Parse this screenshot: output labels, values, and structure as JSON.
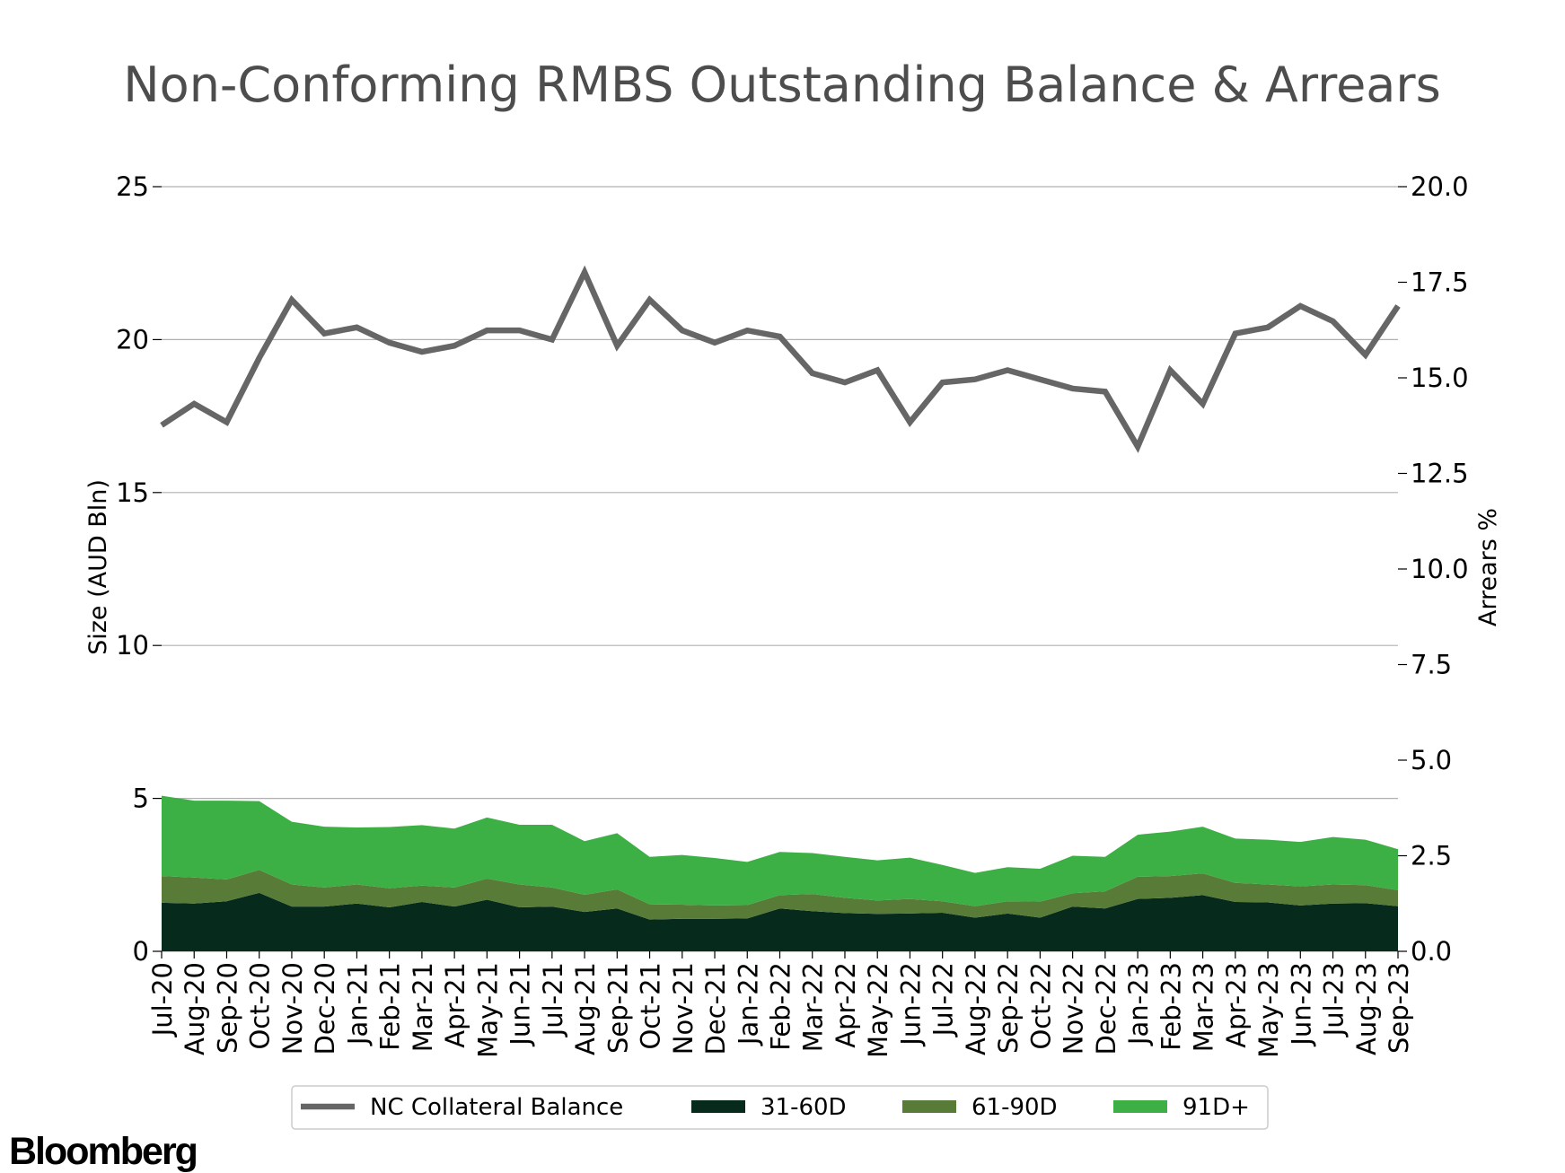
{
  "brand": "Bloomberg",
  "chart_data": {
    "type": "line",
    "title": "Non-Conforming RMBS Outstanding Balance & Arrears",
    "xlabel": "",
    "ylabel": "Size (AUD Bln)",
    "y2label": "Arrears %",
    "ylim": [
      0,
      25
    ],
    "y2lim": [
      0,
      20
    ],
    "yticks": [
      "0",
      "5",
      "10",
      "15",
      "20",
      "25"
    ],
    "y2ticks": [
      "0.0",
      "2.5",
      "5.0",
      "7.5",
      "10.0",
      "12.5",
      "15.0",
      "17.5",
      "20.0"
    ],
    "grid": true,
    "legend_position": "bottom",
    "categories": [
      "Jul-20",
      "Aug-20",
      "Sep-20",
      "Oct-20",
      "Nov-20",
      "Dec-20",
      "Jan-21",
      "Feb-21",
      "Mar-21",
      "Apr-21",
      "May-21",
      "Jun-21",
      "Jul-21",
      "Aug-21",
      "Sep-21",
      "Oct-21",
      "Nov-21",
      "Dec-21",
      "Jan-22",
      "Feb-22",
      "Mar-22",
      "Apr-22",
      "May-22",
      "Jun-22",
      "Jul-22",
      "Aug-22",
      "Sep-22",
      "Oct-22",
      "Nov-22",
      "Dec-22",
      "Jan-23",
      "Feb-23",
      "Mar-23",
      "Apr-23",
      "May-23",
      "Jun-23",
      "Jul-23",
      "Aug-23",
      "Sep-23"
    ],
    "series": [
      {
        "name": "NC Collateral Balance",
        "type": "line",
        "axis": "left",
        "color": "#666666",
        "values": [
          17.2,
          17.9,
          17.3,
          19.4,
          21.3,
          20.2,
          20.4,
          19.9,
          19.6,
          19.8,
          20.3,
          20.3,
          20.0,
          22.2,
          19.8,
          21.3,
          20.3,
          19.9,
          20.3,
          20.1,
          18.9,
          18.6,
          19.0,
          17.3,
          18.6,
          18.7,
          19.0,
          18.7,
          18.4,
          18.3,
          16.5,
          19.0,
          17.9,
          20.2,
          20.4,
          21.1,
          20.6,
          19.5,
          21.1
        ]
      },
      {
        "name": "31-60D",
        "type": "area",
        "axis": "right",
        "color": "#062a1c",
        "values": [
          1.27,
          1.25,
          1.31,
          1.53,
          1.17,
          1.17,
          1.25,
          1.15,
          1.29,
          1.17,
          1.35,
          1.15,
          1.17,
          1.03,
          1.12,
          0.83,
          0.85,
          0.85,
          0.86,
          1.12,
          1.05,
          1.0,
          0.98,
          0.99,
          1.01,
          0.88,
          0.99,
          0.88,
          1.17,
          1.12,
          1.37,
          1.4,
          1.47,
          1.29,
          1.28,
          1.2,
          1.25,
          1.26,
          1.18
        ]
      },
      {
        "name": "61-90D",
        "type": "area",
        "axis": "right",
        "color": "#587b38",
        "values": [
          0.7,
          0.68,
          0.57,
          0.6,
          0.58,
          0.5,
          0.5,
          0.5,
          0.43,
          0.5,
          0.55,
          0.6,
          0.5,
          0.45,
          0.5,
          0.4,
          0.37,
          0.35,
          0.35,
          0.35,
          0.45,
          0.4,
          0.35,
          0.38,
          0.3,
          0.3,
          0.32,
          0.42,
          0.35,
          0.45,
          0.58,
          0.57,
          0.57,
          0.5,
          0.47,
          0.5,
          0.5,
          0.47,
          0.42
        ]
      },
      {
        "name": "91D+",
        "type": "area",
        "axis": "right",
        "color": "#3caf45",
        "values": [
          2.1,
          2.01,
          2.06,
          1.8,
          1.64,
          1.59,
          1.49,
          1.6,
          1.58,
          1.54,
          1.6,
          1.56,
          1.64,
          1.4,
          1.47,
          1.24,
          1.3,
          1.24,
          1.13,
          1.13,
          1.07,
          1.07,
          1.05,
          1.08,
          0.95,
          0.87,
          0.89,
          0.86,
          0.98,
          0.9,
          1.1,
          1.16,
          1.22,
          1.16,
          1.17,
          1.16,
          1.24,
          1.19,
          1.07
        ]
      }
    ]
  }
}
